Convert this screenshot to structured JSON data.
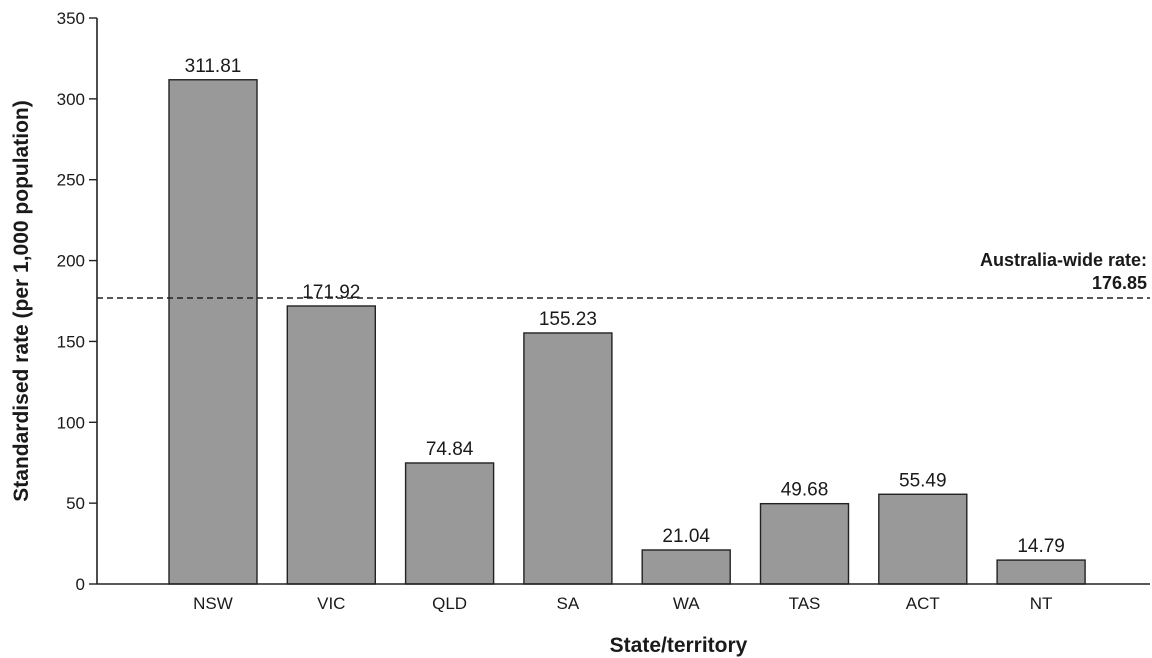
{
  "chart_data": {
    "type": "bar",
    "categories": [
      "NSW",
      "VIC",
      "QLD",
      "SA",
      "WA",
      "TAS",
      "ACT",
      "NT"
    ],
    "values": [
      311.81,
      171.92,
      74.84,
      155.23,
      21.04,
      49.68,
      55.49,
      14.79
    ],
    "data_labels": [
      "311.81",
      "171.92",
      "74.84",
      "155.23",
      "21.04",
      "49.68",
      "55.49",
      "14.79"
    ],
    "title": "",
    "xlabel": "State/territory",
    "ylabel": "Standardised rate (per 1,000 population)",
    "ylim": [
      0,
      350
    ],
    "yticks": [
      0,
      50,
      100,
      150,
      200,
      250,
      300,
      350
    ],
    "grid": false,
    "legend": "none",
    "bar_color": "#999999",
    "reference_line": {
      "value": 176.85,
      "style": "dashed",
      "label_line1": "Australia-wide rate:",
      "label_line2": "176.85"
    }
  }
}
